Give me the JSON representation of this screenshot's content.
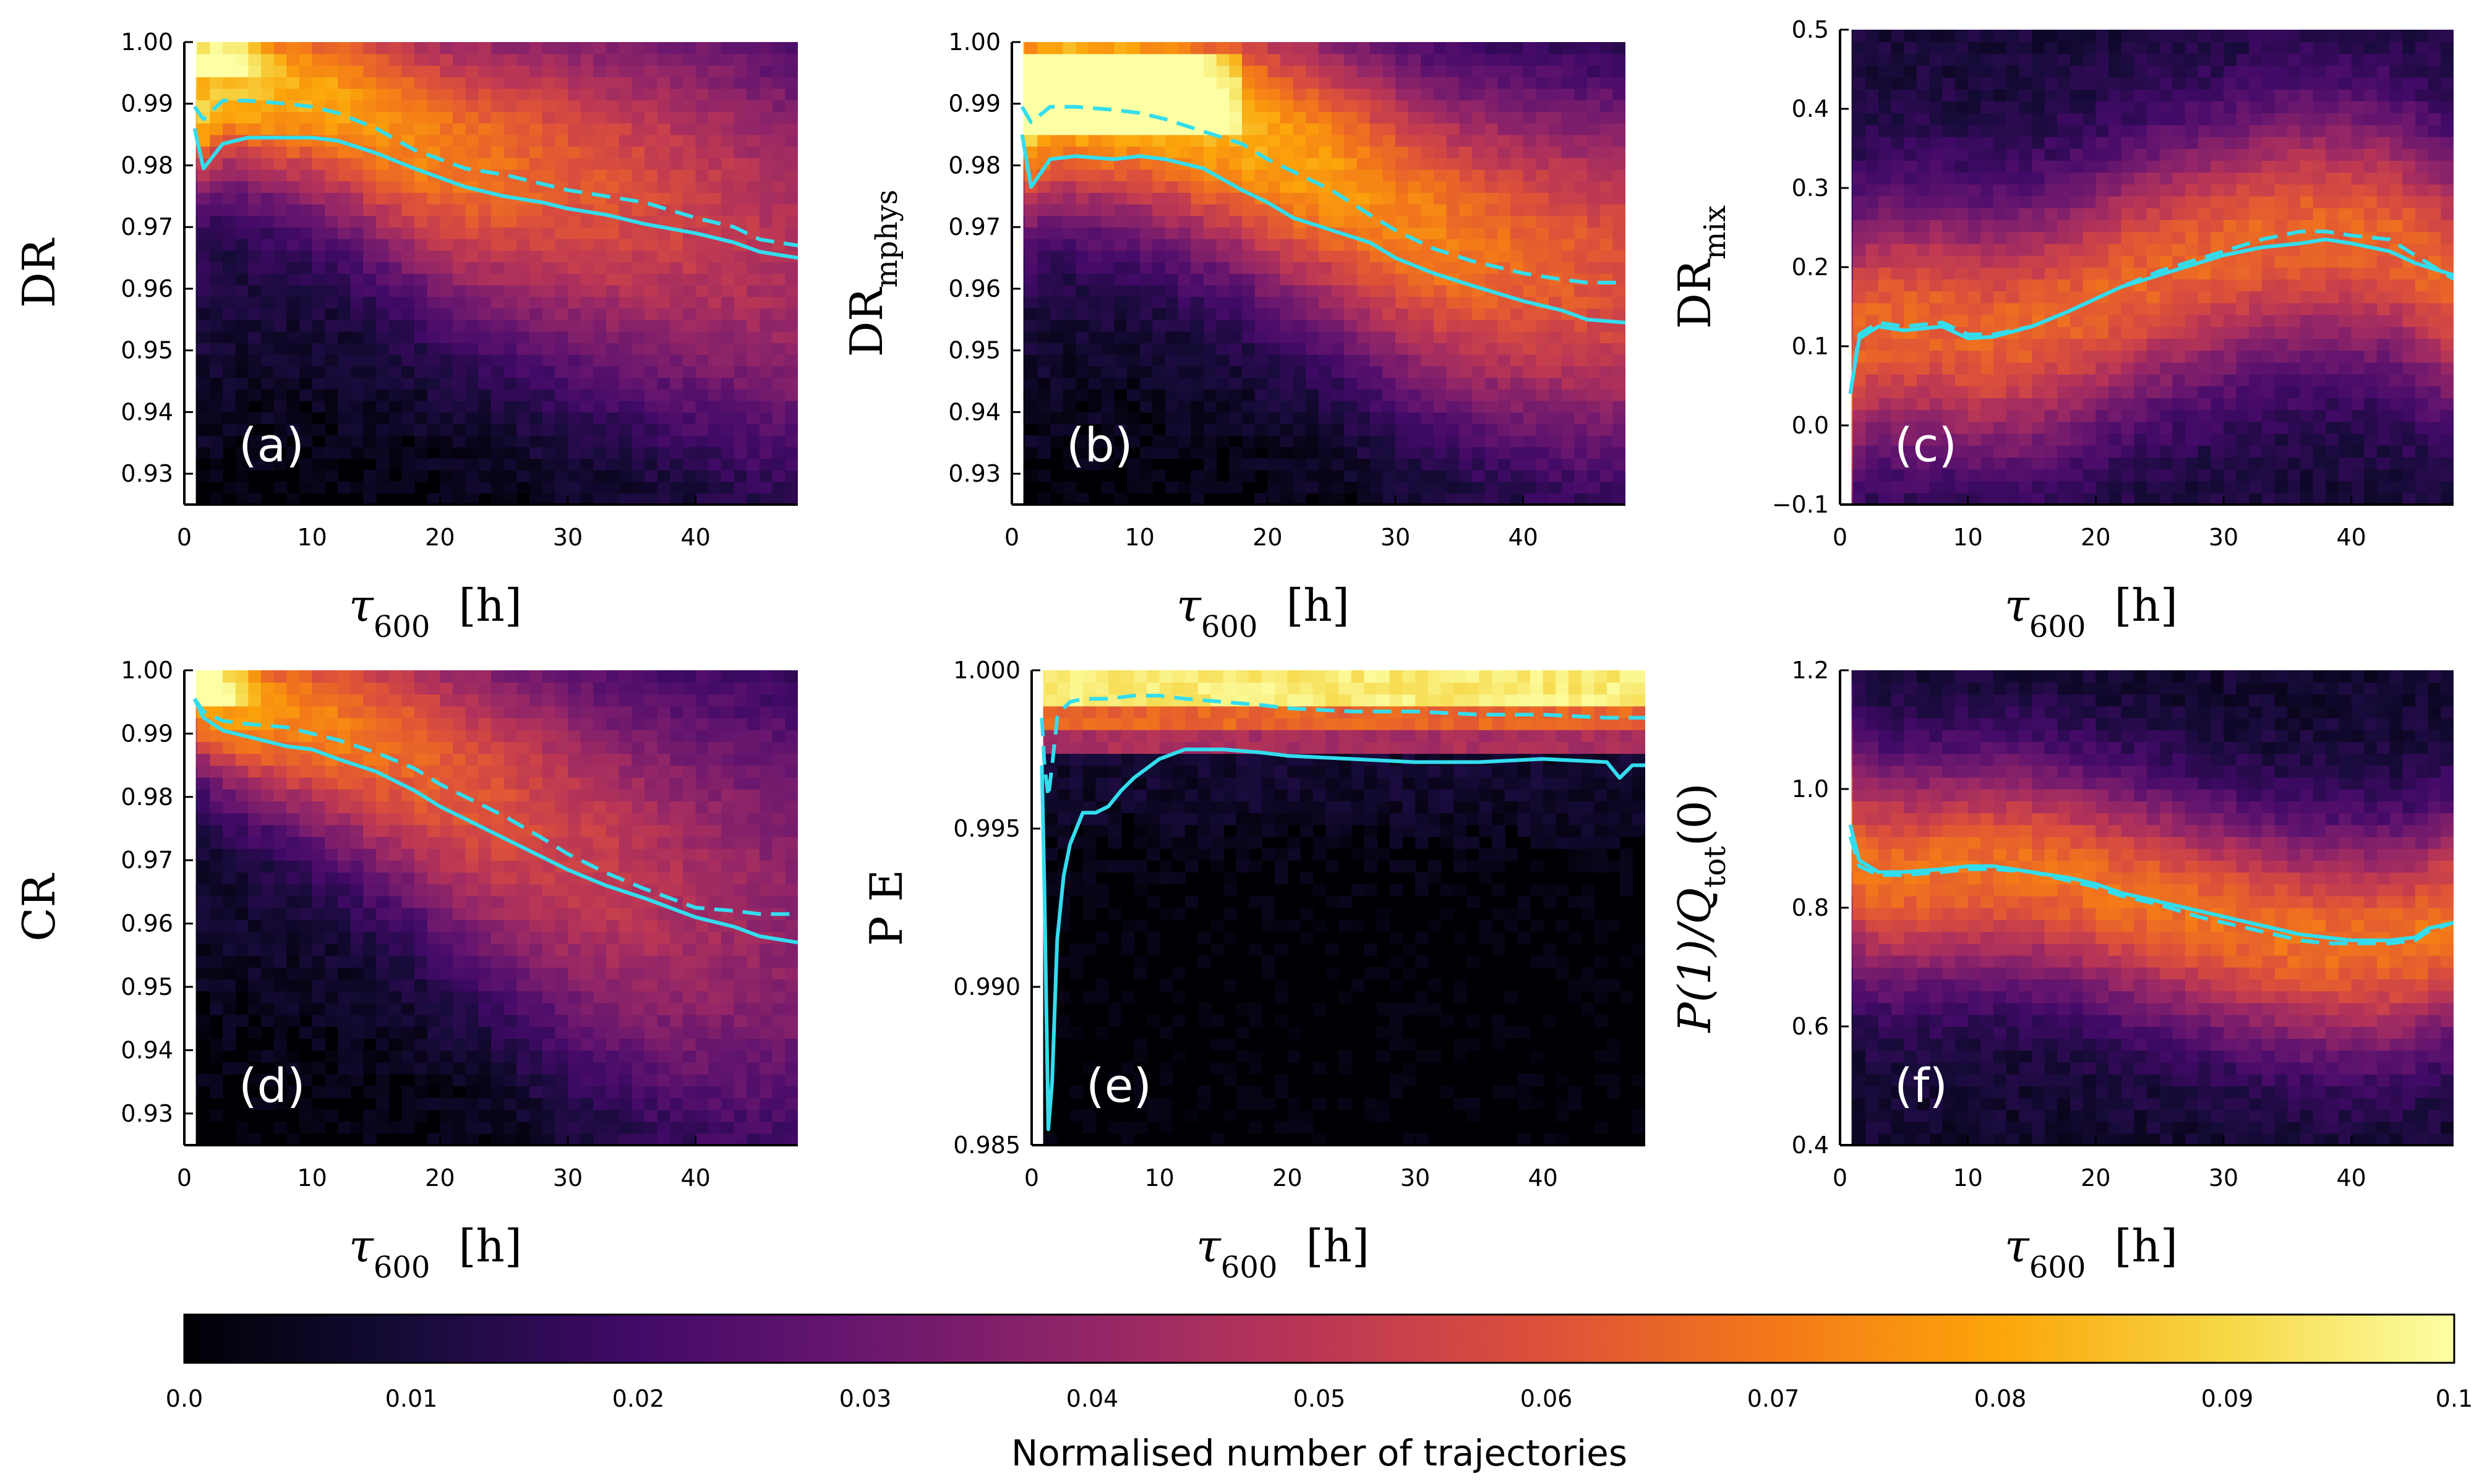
{
  "colorbar": {
    "label": "Normalised number of trajectories",
    "min": 0.0,
    "max": 0.1,
    "ticks": [
      "0.0",
      "0.01",
      "0.02",
      "0.03",
      "0.04",
      "0.05",
      "0.06",
      "0.07",
      "0.08",
      "0.09",
      "0.1"
    ],
    "colormap": "inferno"
  },
  "line_color": "#33ddee",
  "chart_data": [
    {
      "id": "a",
      "type": "heatmap",
      "panel_label": "(a)",
      "xlabel": "τ600 [h]",
      "ylabel": "DR",
      "ylabel_main": "DR",
      "ylabel_sub": "",
      "xlabel_main": "τ",
      "xlabel_sub": "600",
      "xlabel_unit": "[h]",
      "xlim": [
        0,
        48
      ],
      "ylim": [
        0.925,
        1.0
      ],
      "xticks": [
        0,
        10,
        20,
        30,
        40
      ],
      "xtick_labels": [
        "0",
        "10",
        "20",
        "30",
        "40"
      ],
      "yticks": [
        0.93,
        0.94,
        0.95,
        0.96,
        0.97,
        0.98,
        0.99,
        1.0
      ],
      "ytick_labels": [
        "0.93",
        "0.94",
        "0.95",
        "0.96",
        "0.97",
        "0.98",
        "0.99",
        "1.00"
      ],
      "series": [
        {
          "style": "solid",
          "x": [
            0.8,
            1.5,
            3,
            5,
            8,
            10,
            12,
            15,
            18,
            20,
            22,
            25,
            28,
            30,
            33,
            36,
            40,
            43,
            45,
            48
          ],
          "y": [
            0.986,
            0.9795,
            0.9835,
            0.9845,
            0.9845,
            0.9845,
            0.984,
            0.982,
            0.9795,
            0.978,
            0.9765,
            0.975,
            0.974,
            0.973,
            0.972,
            0.9705,
            0.969,
            0.9675,
            0.966,
            0.965
          ]
        },
        {
          "style": "dashed",
          "x": [
            0.8,
            1.5,
            3,
            5,
            8,
            10,
            12,
            15,
            18,
            20,
            22,
            25,
            28,
            30,
            33,
            36,
            40,
            43,
            45,
            48
          ],
          "y": [
            0.9895,
            0.9875,
            0.9905,
            0.9905,
            0.99,
            0.9895,
            0.9885,
            0.986,
            0.9825,
            0.981,
            0.9795,
            0.9785,
            0.977,
            0.976,
            0.975,
            0.974,
            0.9715,
            0.97,
            0.968,
            0.967
          ]
        }
      ]
    },
    {
      "id": "b",
      "type": "heatmap",
      "panel_label": "(b)",
      "xlabel": "τ600 [h]",
      "ylabel": "DRmphys",
      "ylabel_main": "DR",
      "ylabel_sub": "mphys",
      "xlabel_main": "τ",
      "xlabel_sub": "600",
      "xlabel_unit": "[h]",
      "xlim": [
        0,
        48
      ],
      "ylim": [
        0.925,
        1.0
      ],
      "xticks": [
        0,
        10,
        20,
        30,
        40
      ],
      "xtick_labels": [
        "0",
        "10",
        "20",
        "30",
        "40"
      ],
      "yticks": [
        0.93,
        0.94,
        0.95,
        0.96,
        0.97,
        0.98,
        0.99,
        1.0
      ],
      "ytick_labels": [
        "0.93",
        "0.94",
        "0.95",
        "0.96",
        "0.97",
        "0.98",
        "0.99",
        "1.00"
      ],
      "series": [
        {
          "style": "solid",
          "x": [
            0.8,
            1.5,
            3,
            5,
            8,
            10,
            12,
            15,
            18,
            20,
            22,
            25,
            28,
            30,
            33,
            36,
            40,
            43,
            45,
            48
          ],
          "y": [
            0.985,
            0.9765,
            0.981,
            0.9815,
            0.981,
            0.9815,
            0.981,
            0.9795,
            0.976,
            0.974,
            0.9715,
            0.9695,
            0.9675,
            0.965,
            0.9625,
            0.9605,
            0.958,
            0.9565,
            0.955,
            0.9545
          ]
        },
        {
          "style": "dashed",
          "x": [
            0.8,
            1.5,
            3,
            5,
            8,
            10,
            12,
            15,
            18,
            20,
            22,
            25,
            28,
            30,
            33,
            36,
            40,
            43,
            45,
            48
          ],
          "y": [
            0.9895,
            0.987,
            0.9895,
            0.9895,
            0.989,
            0.9885,
            0.9875,
            0.9855,
            0.9835,
            0.981,
            0.979,
            0.976,
            0.972,
            0.9695,
            0.9665,
            0.9645,
            0.9625,
            0.9615,
            0.961,
            0.961
          ]
        }
      ]
    },
    {
      "id": "c",
      "type": "heatmap",
      "panel_label": "(c)",
      "xlabel": "τ600 [h]",
      "ylabel": "DRmix",
      "ylabel_main": "DR",
      "ylabel_sub": "mix",
      "xlabel_main": "τ",
      "xlabel_sub": "600",
      "xlabel_unit": "[h]",
      "xlim": [
        0,
        48
      ],
      "ylim": [
        -0.1,
        0.5
      ],
      "xticks": [
        0,
        10,
        20,
        30,
        40
      ],
      "xtick_labels": [
        "0",
        "10",
        "20",
        "30",
        "40"
      ],
      "yticks": [
        -0.1,
        0.0,
        0.1,
        0.2,
        0.3,
        0.4,
        0.5
      ],
      "ytick_labels": [
        "−0.1",
        "0.0",
        "0.1",
        "0.2",
        "0.3",
        "0.4",
        "0.5"
      ],
      "series": [
        {
          "style": "solid",
          "x": [
            0.8,
            1.5,
            3,
            5,
            8,
            10,
            12,
            15,
            18,
            20,
            22,
            25,
            28,
            30,
            33,
            36,
            38,
            40,
            43,
            45,
            48
          ],
          "y": [
            0.04,
            0.11,
            0.125,
            0.12,
            0.125,
            0.11,
            0.112,
            0.125,
            0.145,
            0.16,
            0.175,
            0.19,
            0.205,
            0.215,
            0.225,
            0.23,
            0.235,
            0.23,
            0.22,
            0.205,
            0.19
          ]
        },
        {
          "style": "dashed",
          "x": [
            0.8,
            1.5,
            3,
            5,
            8,
            10,
            12,
            15,
            18,
            20,
            22,
            25,
            28,
            30,
            33,
            36,
            38,
            40,
            43,
            45,
            48
          ],
          "y": [
            0.04,
            0.115,
            0.13,
            0.125,
            0.13,
            0.115,
            0.115,
            0.125,
            0.145,
            0.16,
            0.175,
            0.195,
            0.21,
            0.22,
            0.235,
            0.245,
            0.245,
            0.24,
            0.235,
            0.215,
            0.185
          ]
        }
      ]
    },
    {
      "id": "d",
      "type": "heatmap",
      "panel_label": "(d)",
      "xlabel": "τ600 [h]",
      "ylabel": "CR",
      "ylabel_main": "CR",
      "ylabel_sub": "",
      "xlabel_main": "τ",
      "xlabel_sub": "600",
      "xlabel_unit": "[h]",
      "xlim": [
        0,
        48
      ],
      "ylim": [
        0.925,
        1.0
      ],
      "xticks": [
        0,
        10,
        20,
        30,
        40
      ],
      "xtick_labels": [
        "0",
        "10",
        "20",
        "30",
        "40"
      ],
      "yticks": [
        0.93,
        0.94,
        0.95,
        0.96,
        0.97,
        0.98,
        0.99,
        1.0
      ],
      "ytick_labels": [
        "0.93",
        "0.94",
        "0.95",
        "0.96",
        "0.97",
        "0.98",
        "0.99",
        "1.00"
      ],
      "series": [
        {
          "style": "solid",
          "x": [
            0.8,
            1.5,
            3,
            5,
            8,
            10,
            12,
            15,
            18,
            20,
            22,
            25,
            28,
            30,
            33,
            36,
            40,
            43,
            45,
            48
          ],
          "y": [
            0.9955,
            0.9925,
            0.9905,
            0.9895,
            0.988,
            0.9875,
            0.986,
            0.984,
            0.981,
            0.9785,
            0.9765,
            0.9735,
            0.9705,
            0.9685,
            0.966,
            0.964,
            0.961,
            0.9595,
            0.958,
            0.957
          ]
        },
        {
          "style": "dashed",
          "x": [
            0.8,
            1.5,
            3,
            5,
            8,
            10,
            12,
            15,
            18,
            20,
            22,
            25,
            28,
            30,
            33,
            36,
            40,
            43,
            45,
            48
          ],
          "y": [
            0.9955,
            0.9935,
            0.992,
            0.9915,
            0.991,
            0.99,
            0.989,
            0.987,
            0.9845,
            0.982,
            0.98,
            0.977,
            0.9735,
            0.971,
            0.968,
            0.9655,
            0.9625,
            0.962,
            0.9615,
            0.9615
          ]
        }
      ]
    },
    {
      "id": "e",
      "type": "heatmap",
      "panel_label": "(e)",
      "xlabel": "τ600 [h]",
      "ylabel": "PE",
      "ylabel_main": "P E",
      "ylabel_sub": "",
      "xlabel_main": "τ",
      "xlabel_sub": "600",
      "xlabel_unit": "[h]",
      "xlim": [
        0,
        48
      ],
      "ylim": [
        0.985,
        1.0
      ],
      "xticks": [
        0,
        10,
        20,
        30,
        40
      ],
      "xtick_labels": [
        "0",
        "10",
        "20",
        "30",
        "40"
      ],
      "yticks": [
        0.985,
        0.99,
        0.995,
        1.0
      ],
      "ytick_labels": [
        "0.985",
        "0.990",
        "0.995",
        "1.000"
      ],
      "series": [
        {
          "style": "solid",
          "x": [
            0.8,
            1.0,
            1.3,
            1.6,
            2,
            2.5,
            3,
            4,
            5,
            6,
            7,
            8,
            10,
            12,
            15,
            18,
            20,
            25,
            30,
            35,
            40,
            45,
            46,
            47,
            48
          ],
          "y": [
            0.997,
            0.993,
            0.9855,
            0.987,
            0.9915,
            0.9935,
            0.9945,
            0.9955,
            0.9955,
            0.9957,
            0.9962,
            0.9966,
            0.9972,
            0.9975,
            0.9975,
            0.9974,
            0.9973,
            0.9972,
            0.9971,
            0.9971,
            0.9972,
            0.9971,
            0.9966,
            0.997,
            0.997
          ]
        },
        {
          "style": "dashed",
          "x": [
            0.8,
            1.0,
            1.3,
            1.6,
            2,
            2.5,
            3,
            4,
            6,
            8,
            10,
            12,
            15,
            18,
            20,
            25,
            30,
            35,
            40,
            45,
            48
          ],
          "y": [
            0.9985,
            0.997,
            0.996,
            0.997,
            0.9985,
            0.9988,
            0.999,
            0.9991,
            0.9991,
            0.9992,
            0.9992,
            0.9991,
            0.999,
            0.9989,
            0.9988,
            0.9987,
            0.9987,
            0.9986,
            0.9986,
            0.9985,
            0.9985
          ]
        }
      ]
    },
    {
      "id": "f",
      "type": "heatmap",
      "panel_label": "(f)",
      "xlabel": "τ600 [h]",
      "ylabel": "P(1)/Qtot(0)",
      "ylabel_main": "P(1)/Q",
      "ylabel_sub": "tot",
      "ylabel_tail": "(0)",
      "xlabel_main": "τ",
      "xlabel_sub": "600",
      "xlabel_unit": "[h]",
      "xlim": [
        0,
        48
      ],
      "ylim": [
        0.4,
        1.2
      ],
      "xticks": [
        0,
        10,
        20,
        30,
        40
      ],
      "xtick_labels": [
        "0",
        "10",
        "20",
        "30",
        "40"
      ],
      "yticks": [
        0.4,
        0.6,
        0.8,
        1.0,
        1.2
      ],
      "ytick_labels": [
        "0.4",
        "0.6",
        "0.8",
        "1.0",
        "1.2"
      ],
      "series": [
        {
          "style": "solid",
          "x": [
            0.8,
            1.5,
            3,
            5,
            8,
            10,
            12,
            15,
            18,
            20,
            22,
            25,
            28,
            30,
            33,
            36,
            38,
            40,
            43,
            45,
            46,
            48
          ],
          "y": [
            0.94,
            0.88,
            0.86,
            0.86,
            0.865,
            0.87,
            0.87,
            0.86,
            0.85,
            0.84,
            0.825,
            0.81,
            0.795,
            0.785,
            0.77,
            0.755,
            0.75,
            0.745,
            0.745,
            0.75,
            0.765,
            0.775
          ]
        },
        {
          "style": "dashed",
          "x": [
            0.8,
            1.5,
            3,
            5,
            8,
            10,
            12,
            15,
            18,
            20,
            22,
            25,
            28,
            30,
            33,
            36,
            38,
            40,
            43,
            45,
            46,
            48
          ],
          "y": [
            0.92,
            0.87,
            0.855,
            0.855,
            0.86,
            0.865,
            0.865,
            0.86,
            0.845,
            0.835,
            0.82,
            0.805,
            0.785,
            0.775,
            0.76,
            0.745,
            0.74,
            0.74,
            0.74,
            0.745,
            0.76,
            0.775
          ]
        }
      ]
    }
  ]
}
